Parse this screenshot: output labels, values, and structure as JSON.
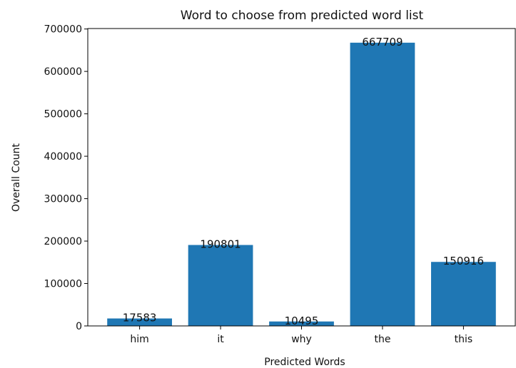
{
  "chart_data": {
    "type": "bar",
    "title": "Word to choose from predicted word list",
    "x_label": "Predicted Words",
    "y_label": "Overall Count",
    "categories": [
      "him",
      "it",
      "why",
      "the",
      "this"
    ],
    "values": [
      17583,
      190801,
      10495,
      667709,
      150916
    ],
    "color": "#1f77b4",
    "ylim": [
      0,
      701094
    ],
    "yticks": [
      0,
      100000,
      200000,
      300000,
      400000,
      500000,
      600000,
      700000
    ],
    "grid": false
  }
}
